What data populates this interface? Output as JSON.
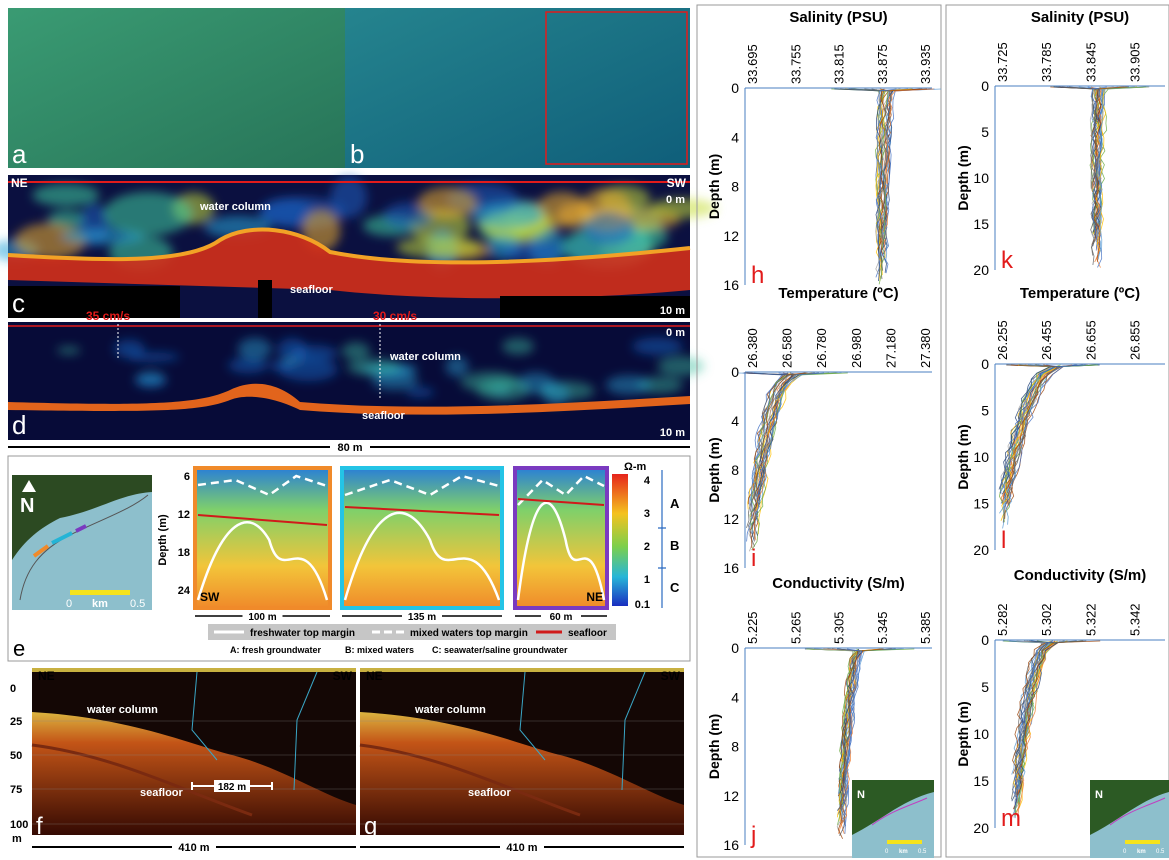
{
  "photos": {
    "a": "a",
    "b": "b"
  },
  "echogram_c": {
    "label": "c",
    "left": "NE",
    "right": "SW",
    "water": "water column",
    "seafloor": "seafloor",
    "top_depth": "0 m",
    "bottom_depth": "10 m"
  },
  "echogram_d": {
    "label": "d",
    "speeds": [
      "35 cm/s",
      "30 cm/s"
    ],
    "water": "water column",
    "seafloor": "seafloor",
    "top_depth": "0 m",
    "bottom_depth": "10 m",
    "scale": "80 m"
  },
  "ert": {
    "label": "e",
    "north": "N",
    "map_scale": [
      "0",
      "km",
      "0.5"
    ],
    "y_axis": "Depth (m)",
    "depth_ticks": [
      "6",
      "12",
      "18",
      "24"
    ],
    "ends": [
      "SW",
      "NE"
    ],
    "widths": [
      "100 m",
      "135 m",
      "60 m"
    ],
    "unit": "Ω-m",
    "colorbar_ticks": [
      "4",
      "3",
      "2",
      "1",
      "0.1"
    ],
    "zones": [
      "A",
      "B",
      "C"
    ],
    "legend": [
      "freshwater top margin",
      "mixed waters top margin",
      "seafloor"
    ],
    "zone_notes": [
      "A: fresh groundwater",
      "B: mixed waters",
      "C: seawater/saline groundwater"
    ]
  },
  "subbottom": {
    "depth_ticks": [
      "0",
      "25",
      "50",
      "75",
      "100"
    ],
    "depth_unit": "m",
    "panels": [
      {
        "label": "f",
        "left": "NE",
        "right": "SW",
        "water": "water column",
        "seafloor": "seafloor",
        "scale": "410 m",
        "annotation": "182 m"
      },
      {
        "label": "g",
        "left": "NE",
        "right": "SW",
        "water": "water column",
        "seafloor": "seafloor",
        "scale": "410 m"
      }
    ]
  },
  "profiles": [
    {
      "inset": [
        "N",
        "0",
        "km",
        "0.5"
      ],
      "plots": [
        {
          "title": "Salinity (PSU)",
          "ticks": [
            "33.695",
            "33.755",
            "33.815",
            "33.875",
            "33.935"
          ],
          "y_label": "Depth (m)",
          "depth_ticks": [
            "0",
            "4",
            "8",
            "12",
            "16"
          ],
          "label": "h"
        },
        {
          "title": "Temperature (ºC)",
          "ticks": [
            "26.380",
            "26.580",
            "26.780",
            "26.980",
            "27.180",
            "27.380"
          ],
          "y_label": "Depth (m)",
          "depth_ticks": [
            "0",
            "4",
            "8",
            "12",
            "16"
          ],
          "label": "i"
        },
        {
          "title": "Conductivity (S/m)",
          "ticks": [
            "5.225",
            "5.265",
            "5.305",
            "5.345",
            "5.385"
          ],
          "y_label": "Depth (m)",
          "depth_ticks": [
            "0",
            "4",
            "8",
            "12",
            "16"
          ],
          "label": "j"
        }
      ]
    },
    {
      "inset": [
        "N",
        "0",
        "km",
        "0.5"
      ],
      "plots": [
        {
          "title": "Salinity (PSU)",
          "ticks": [
            "33.725",
            "33.785",
            "33.845",
            "33.905"
          ],
          "y_label": "Depth (m)",
          "depth_ticks": [
            "0",
            "5",
            "10",
            "15",
            "20"
          ],
          "label": "k"
        },
        {
          "title": "Temperature (ºC)",
          "ticks": [
            "26.255",
            "26.455",
            "26.655",
            "26.855"
          ],
          "y_label": "Depth (m)",
          "depth_ticks": [
            "0",
            "5",
            "10",
            "15",
            "20"
          ],
          "label": "l"
        },
        {
          "title": "Conductivity (S/m)",
          "ticks": [
            "5.282",
            "5.302",
            "5.322",
            "5.342"
          ],
          "y_label": "Depth (m)",
          "depth_ticks": [
            "0",
            "5",
            "10",
            "15",
            "20"
          ],
          "label": "m"
        }
      ]
    }
  ]
}
